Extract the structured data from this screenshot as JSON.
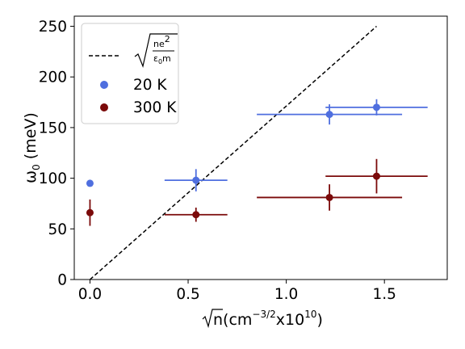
{
  "chart_data": {
    "type": "scatter",
    "xlim": [
      -0.08,
      1.82
    ],
    "ylim": [
      0,
      260
    ],
    "x_ticks": [
      "0.0",
      "0.5",
      "1.0",
      "1.5"
    ],
    "x_tick_values": [
      0,
      0.5,
      1.0,
      1.5
    ],
    "y_ticks": [
      "0",
      "50",
      "100",
      "150",
      "200",
      "250"
    ],
    "y_tick_values": [
      0,
      50,
      100,
      150,
      200,
      250
    ],
    "xlabel": {
      "radicand": "n",
      "prefix": "(cm",
      "exp1": "−3/2",
      "mid": "x10",
      "exp2": "10",
      "suffix": ")"
    },
    "ylabel": {
      "symbol": "ω",
      "sub": "0",
      "unit": " (meV)"
    },
    "grid": false,
    "legend_position": "top-left",
    "reference_line": {
      "style": "dashed",
      "color": "#000000",
      "x": [
        0,
        1.46
      ],
      "y": [
        0,
        250
      ],
      "label": {
        "num": "ne",
        "num_exp": "2",
        "den": "ε",
        "den_sub": "0",
        "den_rest": "m"
      }
    },
    "series": [
      {
        "name": "20 K",
        "color": "#4f6fdf",
        "points": [
          {
            "x": 0.0,
            "y": 95,
            "xerr": 0,
            "yerr": 3
          },
          {
            "x": 0.54,
            "y": 98,
            "xerr": 0.16,
            "yerr": 11
          },
          {
            "x": 1.22,
            "y": 163,
            "xerr": 0.37,
            "yerr": 10
          },
          {
            "x": 1.46,
            "y": 170,
            "xerr": 0.26,
            "yerr": 8
          }
        ]
      },
      {
        "name": "300 K",
        "color": "#7b0a0a",
        "points": [
          {
            "x": 0.0,
            "y": 66,
            "xerr": 0,
            "yerr": 13
          },
          {
            "x": 0.54,
            "y": 64,
            "xerr": 0.16,
            "yerr": 7
          },
          {
            "x": 1.22,
            "y": 81,
            "xerr": 0.37,
            "yerr": 13
          },
          {
            "x": 1.46,
            "y": 102,
            "xerr": 0.26,
            "yerr": 17
          }
        ]
      }
    ]
  }
}
